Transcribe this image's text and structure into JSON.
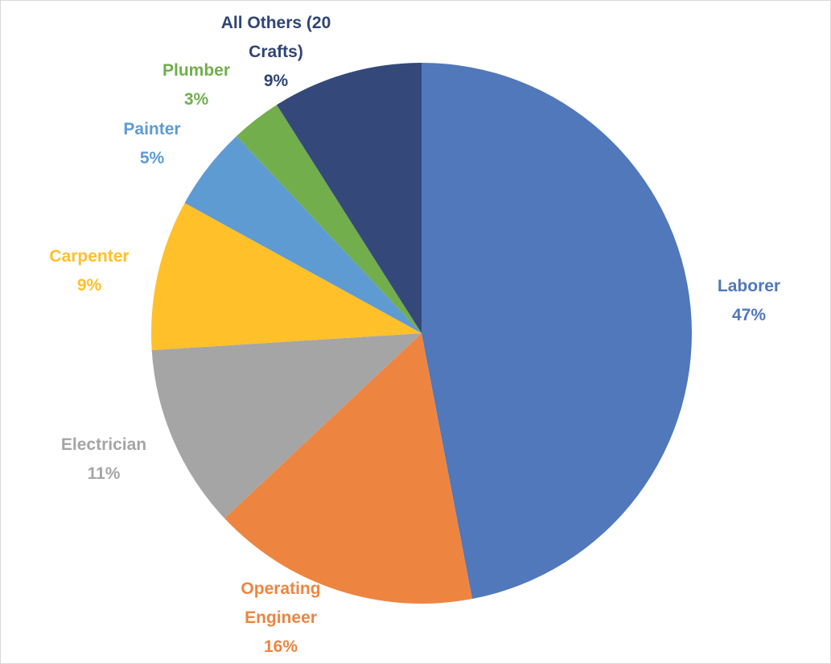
{
  "chart_data": {
    "type": "pie",
    "categories": [
      "Laborer",
      "Operating Engineer",
      "Electrician",
      "Carpenter",
      "Painter",
      "Plumber",
      "All Others (20 Crafts)"
    ],
    "values": [
      47,
      16,
      11,
      9,
      5,
      3,
      9
    ],
    "value_labels": [
      "47%",
      "16%",
      "11%",
      "9%",
      "5%",
      "3%",
      "9%"
    ],
    "colors": [
      "#5078bb",
      "#ed8540",
      "#a5a5a5",
      "#ffc02a",
      "#5e9bd3",
      "#72ae4c",
      "#34497a"
    ],
    "label_colors": [
      "#5078bb",
      "#ed8540",
      "#a5a5a5",
      "#ffc02a",
      "#5e9bd3",
      "#72ae4c",
      "#2f4574"
    ]
  }
}
